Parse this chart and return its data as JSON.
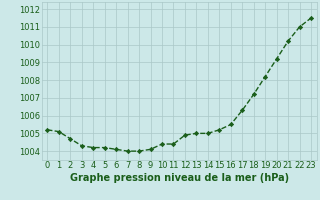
{
  "x": [
    0,
    1,
    2,
    3,
    4,
    5,
    6,
    7,
    8,
    9,
    10,
    11,
    12,
    13,
    14,
    15,
    16,
    17,
    18,
    19,
    20,
    21,
    22,
    23
  ],
  "y": [
    1005.2,
    1005.1,
    1004.7,
    1004.3,
    1004.2,
    1004.2,
    1004.1,
    1004.0,
    1004.0,
    1004.1,
    1004.4,
    1004.4,
    1004.9,
    1005.0,
    1005.0,
    1005.2,
    1005.5,
    1006.3,
    1007.2,
    1008.2,
    1009.2,
    1010.2,
    1011.0,
    1011.5
  ],
  "line_color": "#1a5e1a",
  "marker": "D",
  "marker_size": 2.2,
  "line_width": 1.0,
  "bg_color": "#cce8e8",
  "grid_color": "#aac8c8",
  "xlabel": "Graphe pression niveau de la mer (hPa)",
  "xlabel_fontsize": 7,
  "xlabel_color": "#1a5e1a",
  "ylim": [
    1003.5,
    1012.4
  ],
  "yticks": [
    1004,
    1005,
    1006,
    1007,
    1008,
    1009,
    1010,
    1011,
    1012
  ],
  "tick_fontsize": 6,
  "tick_color": "#1a5e1a"
}
